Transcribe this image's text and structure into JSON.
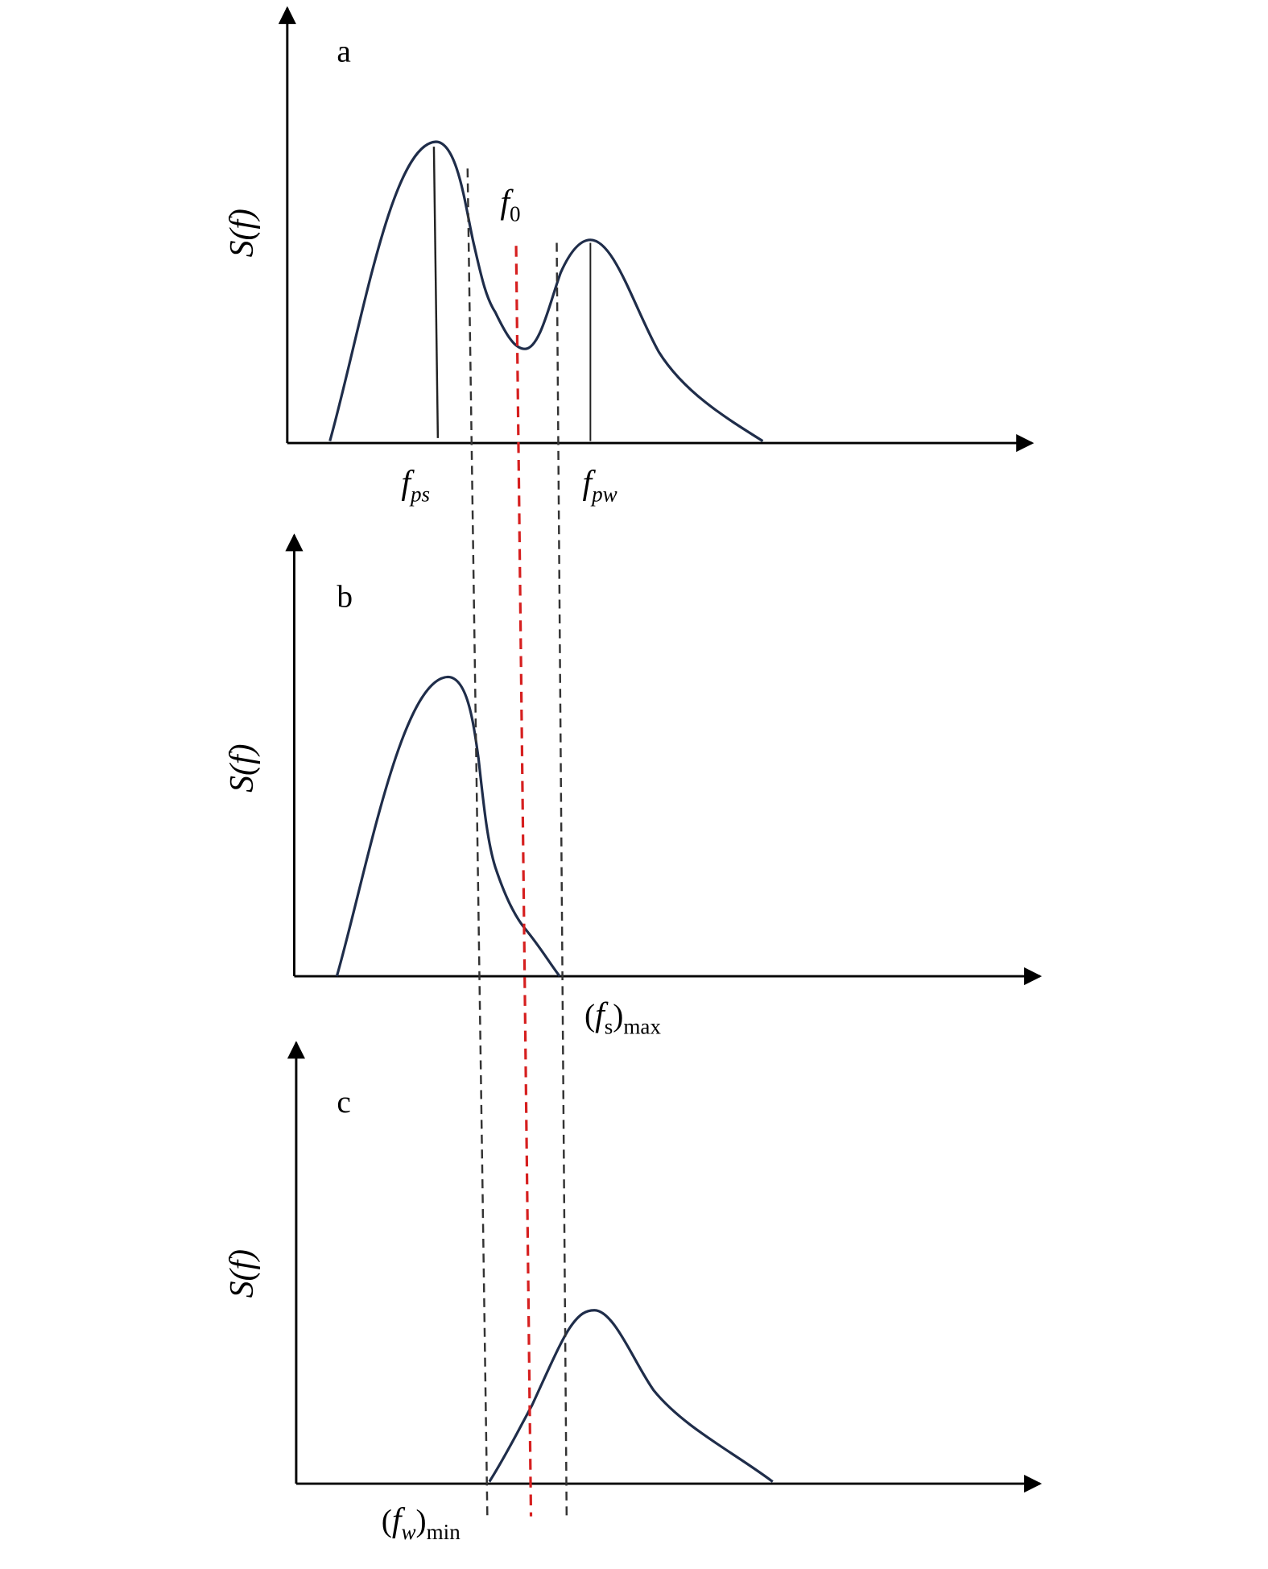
{
  "panels": [
    {
      "label": "a",
      "y_axis_label": "S(f)",
      "annotations": [
        {
          "parts": [
            {
              "text": "f",
              "role": "italic"
            },
            {
              "text": "0",
              "role": "sub"
            }
          ]
        },
        {
          "parts": [
            {
              "text": "f",
              "role": "italic"
            },
            {
              "text": "ps",
              "role": "sub-italic"
            }
          ]
        },
        {
          "parts": [
            {
              "text": "f",
              "role": "italic"
            },
            {
              "text": "pw",
              "role": "sub-italic"
            }
          ]
        }
      ]
    },
    {
      "label": "b",
      "y_axis_label": "S(f)",
      "annotations": [
        {
          "parts": [
            {
              "text": "(",
              "role": "normal"
            },
            {
              "text": "f",
              "role": "italic"
            },
            {
              "text": "s",
              "role": "sub"
            },
            {
              "text": ")",
              "role": "normal"
            },
            {
              "text": "max",
              "role": "sub"
            }
          ]
        }
      ]
    },
    {
      "label": "c",
      "y_axis_label": "S(f)",
      "annotations": [
        {
          "parts": [
            {
              "text": "(",
              "role": "normal"
            },
            {
              "text": "f",
              "role": "italic"
            },
            {
              "text": "w",
              "role": "sub-italic"
            },
            {
              "text": ")",
              "role": "normal"
            },
            {
              "text": "min",
              "role": "sub"
            }
          ]
        }
      ]
    }
  ]
}
